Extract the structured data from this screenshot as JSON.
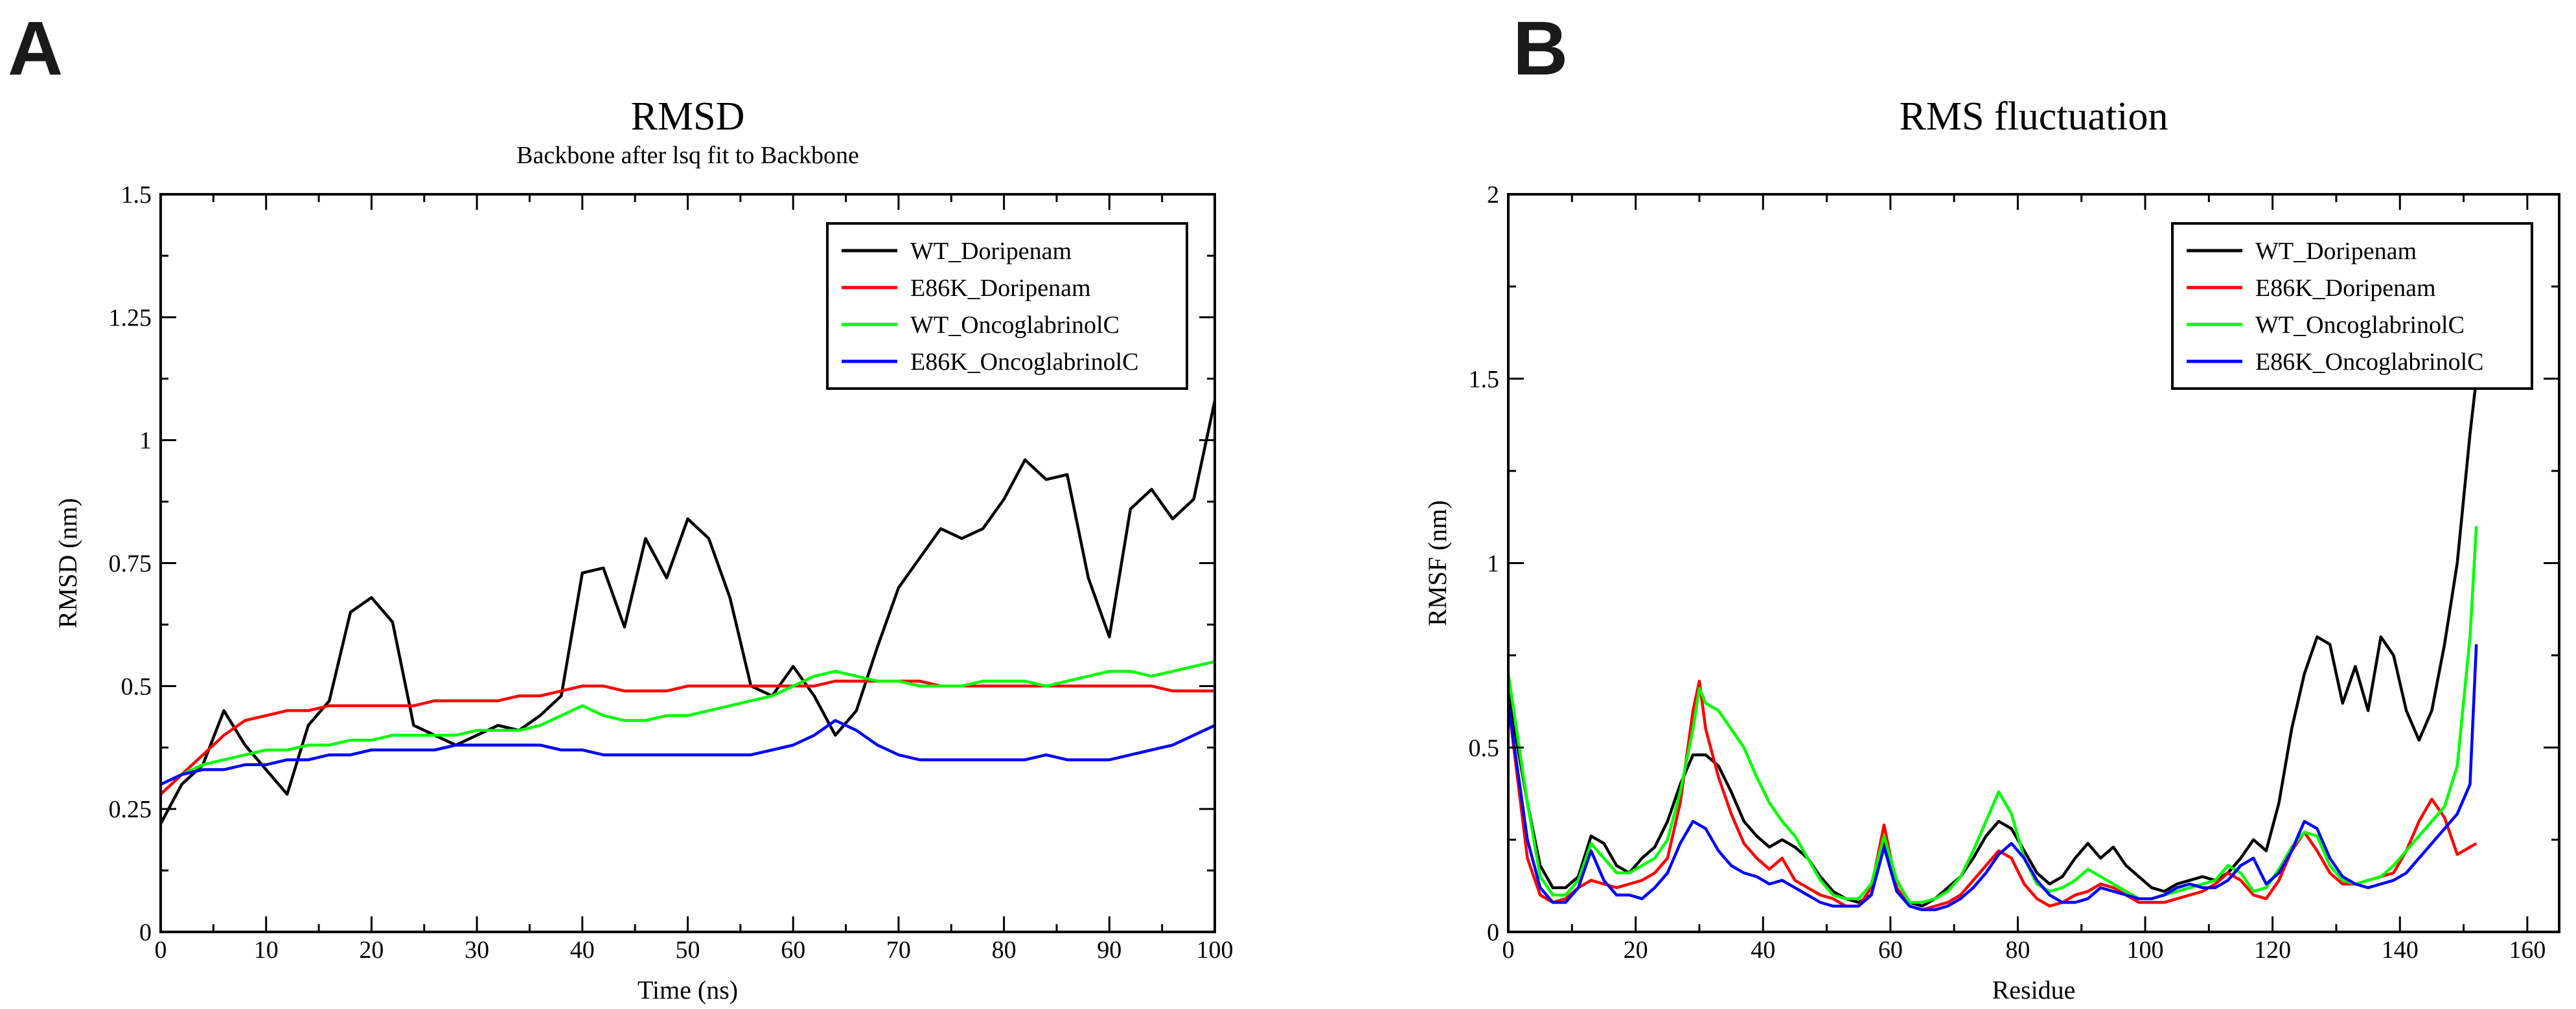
{
  "chart_data": [
    {
      "panel": "A",
      "type": "line",
      "title": "RMSD",
      "subtitle": "Backbone after lsq fit to Backbone",
      "xlabel": "Time (ns)",
      "ylabel": "RMSD (nm)",
      "xlim": [
        0,
        100
      ],
      "ylim": [
        0,
        1.5
      ],
      "xticks": [
        0,
        10,
        20,
        30,
        40,
        50,
        60,
        70,
        80,
        90,
        100
      ],
      "yticks": [
        0,
        0.25,
        0.5,
        0.75,
        1,
        1.25,
        1.5
      ],
      "ytick_labels": [
        "0",
        "0.25",
        "0.5",
        "0.75",
        "1",
        "1.25",
        "1.5"
      ],
      "legend_position": "top-right",
      "series": [
        {
          "name": "WT_Doripenam",
          "color": "#000000",
          "x": [
            0,
            2,
            4,
            6,
            8,
            10,
            12,
            14,
            16,
            18,
            20,
            22,
            24,
            26,
            28,
            30,
            32,
            34,
            36,
            38,
            40,
            42,
            44,
            46,
            48,
            50,
            52,
            54,
            56,
            58,
            60,
            62,
            64,
            66,
            68,
            70,
            72,
            74,
            76,
            78,
            80,
            82,
            84,
            86,
            88,
            90,
            92,
            94,
            96,
            98,
            100
          ],
          "y": [
            0.22,
            0.3,
            0.34,
            0.45,
            0.38,
            0.33,
            0.28,
            0.42,
            0.47,
            0.65,
            0.68,
            0.63,
            0.42,
            0.4,
            0.38,
            0.4,
            0.42,
            0.41,
            0.44,
            0.48,
            0.73,
            0.74,
            0.62,
            0.8,
            0.72,
            0.84,
            0.8,
            0.68,
            0.5,
            0.48,
            0.54,
            0.48,
            0.4,
            0.45,
            0.58,
            0.7,
            0.76,
            0.82,
            0.8,
            0.82,
            0.88,
            0.96,
            0.92,
            0.93,
            0.72,
            0.6,
            0.86,
            0.9,
            0.84,
            0.88,
            1.08
          ]
        },
        {
          "name": "E86K_Doripenam",
          "color": "#ff0000",
          "x": [
            0,
            2,
            4,
            6,
            8,
            10,
            12,
            14,
            16,
            18,
            20,
            22,
            24,
            26,
            28,
            30,
            32,
            34,
            36,
            38,
            40,
            42,
            44,
            46,
            48,
            50,
            52,
            54,
            56,
            58,
            60,
            62,
            64,
            66,
            68,
            70,
            72,
            74,
            76,
            78,
            80,
            82,
            84,
            86,
            88,
            90,
            92,
            94,
            96,
            98,
            100
          ],
          "y": [
            0.28,
            0.32,
            0.36,
            0.4,
            0.43,
            0.44,
            0.45,
            0.45,
            0.46,
            0.46,
            0.46,
            0.46,
            0.46,
            0.47,
            0.47,
            0.47,
            0.47,
            0.48,
            0.48,
            0.49,
            0.5,
            0.5,
            0.49,
            0.49,
            0.49,
            0.5,
            0.5,
            0.5,
            0.5,
            0.5,
            0.5,
            0.5,
            0.51,
            0.51,
            0.51,
            0.51,
            0.51,
            0.5,
            0.5,
            0.5,
            0.5,
            0.5,
            0.5,
            0.5,
            0.5,
            0.5,
            0.5,
            0.5,
            0.49,
            0.49,
            0.49
          ]
        },
        {
          "name": "WT_OncoglabrinolC",
          "color": "#00ff00",
          "x": [
            0,
            2,
            4,
            6,
            8,
            10,
            12,
            14,
            16,
            18,
            20,
            22,
            24,
            26,
            28,
            30,
            32,
            34,
            36,
            38,
            40,
            42,
            44,
            46,
            48,
            50,
            52,
            54,
            56,
            58,
            60,
            62,
            64,
            66,
            68,
            70,
            72,
            74,
            76,
            78,
            80,
            82,
            84,
            86,
            88,
            90,
            92,
            94,
            96,
            98,
            100
          ],
          "y": [
            0.3,
            0.32,
            0.34,
            0.35,
            0.36,
            0.37,
            0.37,
            0.38,
            0.38,
            0.39,
            0.39,
            0.4,
            0.4,
            0.4,
            0.4,
            0.41,
            0.41,
            0.41,
            0.42,
            0.44,
            0.46,
            0.44,
            0.43,
            0.43,
            0.44,
            0.44,
            0.45,
            0.46,
            0.47,
            0.48,
            0.5,
            0.52,
            0.53,
            0.52,
            0.51,
            0.51,
            0.5,
            0.5,
            0.5,
            0.51,
            0.51,
            0.51,
            0.5,
            0.51,
            0.52,
            0.53,
            0.53,
            0.52,
            0.53,
            0.54,
            0.55
          ]
        },
        {
          "name": "E86K_OncoglabrinolC",
          "color": "#0000ff",
          "x": [
            0,
            2,
            4,
            6,
            8,
            10,
            12,
            14,
            16,
            18,
            20,
            22,
            24,
            26,
            28,
            30,
            32,
            34,
            36,
            38,
            40,
            42,
            44,
            46,
            48,
            50,
            52,
            54,
            56,
            58,
            60,
            62,
            64,
            66,
            68,
            70,
            72,
            74,
            76,
            78,
            80,
            82,
            84,
            86,
            88,
            90,
            92,
            94,
            96,
            98,
            100
          ],
          "y": [
            0.3,
            0.32,
            0.33,
            0.33,
            0.34,
            0.34,
            0.35,
            0.35,
            0.36,
            0.36,
            0.37,
            0.37,
            0.37,
            0.37,
            0.38,
            0.38,
            0.38,
            0.38,
            0.38,
            0.37,
            0.37,
            0.36,
            0.36,
            0.36,
            0.36,
            0.36,
            0.36,
            0.36,
            0.36,
            0.37,
            0.38,
            0.4,
            0.43,
            0.41,
            0.38,
            0.36,
            0.35,
            0.35,
            0.35,
            0.35,
            0.35,
            0.35,
            0.36,
            0.35,
            0.35,
            0.35,
            0.36,
            0.37,
            0.38,
            0.4,
            0.42
          ]
        }
      ]
    },
    {
      "panel": "B",
      "type": "line",
      "title": "RMS fluctuation",
      "xlabel": "Residue",
      "ylabel": "RMSF (nm)",
      "xlim": [
        0,
        165
      ],
      "ylim": [
        0,
        2
      ],
      "xticks": [
        0,
        20,
        40,
        60,
        80,
        100,
        120,
        140,
        160
      ],
      "yticks": [
        0,
        0.5,
        1,
        1.5,
        2
      ],
      "ytick_labels": [
        "0",
        "0.5",
        "1",
        "1.5",
        "2"
      ],
      "legend_position": "top-right",
      "series": [
        {
          "name": "WT_Doripenam",
          "color": "#000000",
          "x": [
            0,
            3,
            5,
            7,
            9,
            11,
            13,
            15,
            17,
            19,
            21,
            23,
            25,
            27,
            29,
            31,
            33,
            35,
            37,
            39,
            41,
            43,
            45,
            47,
            49,
            51,
            53,
            55,
            57,
            59,
            61,
            63,
            65,
            67,
            69,
            71,
            73,
            75,
            77,
            79,
            81,
            83,
            85,
            87,
            89,
            91,
            93,
            95,
            97,
            99,
            101,
            103,
            105,
            107,
            109,
            111,
            113,
            115,
            117,
            119,
            121,
            123,
            125,
            127,
            129,
            131,
            133,
            135,
            137,
            139,
            141,
            143,
            145,
            147,
            149,
            151,
            152
          ],
          "y": [
            0.65,
            0.35,
            0.18,
            0.12,
            0.12,
            0.15,
            0.26,
            0.24,
            0.18,
            0.16,
            0.2,
            0.23,
            0.3,
            0.4,
            0.48,
            0.48,
            0.45,
            0.38,
            0.3,
            0.26,
            0.23,
            0.25,
            0.23,
            0.2,
            0.15,
            0.11,
            0.09,
            0.08,
            0.1,
            0.25,
            0.14,
            0.08,
            0.07,
            0.09,
            0.12,
            0.15,
            0.2,
            0.26,
            0.3,
            0.28,
            0.22,
            0.16,
            0.13,
            0.15,
            0.2,
            0.24,
            0.2,
            0.23,
            0.18,
            0.15,
            0.12,
            0.11,
            0.13,
            0.14,
            0.15,
            0.14,
            0.16,
            0.2,
            0.25,
            0.22,
            0.35,
            0.55,
            0.7,
            0.8,
            0.78,
            0.62,
            0.72,
            0.6,
            0.8,
            0.75,
            0.6,
            0.52,
            0.6,
            0.78,
            1.0,
            1.35,
            1.5
          ]
        },
        {
          "name": "E86K_Doripenam",
          "color": "#ff0000",
          "x": [
            0,
            3,
            5,
            7,
            9,
            11,
            13,
            15,
            17,
            19,
            21,
            23,
            25,
            27,
            29,
            30,
            31,
            33,
            35,
            37,
            39,
            41,
            43,
            45,
            47,
            49,
            51,
            53,
            55,
            57,
            59,
            61,
            63,
            65,
            67,
            69,
            71,
            73,
            75,
            77,
            79,
            81,
            83,
            85,
            87,
            89,
            91,
            93,
            95,
            97,
            99,
            101,
            103,
            105,
            107,
            109,
            111,
            113,
            115,
            117,
            119,
            121,
            123,
            125,
            127,
            129,
            131,
            133,
            135,
            137,
            139,
            141,
            143,
            145,
            147,
            149,
            152
          ],
          "y": [
            0.62,
            0.2,
            0.1,
            0.08,
            0.09,
            0.12,
            0.14,
            0.13,
            0.12,
            0.13,
            0.14,
            0.16,
            0.2,
            0.35,
            0.6,
            0.68,
            0.55,
            0.42,
            0.32,
            0.24,
            0.2,
            0.17,
            0.2,
            0.14,
            0.12,
            0.1,
            0.09,
            0.07,
            0.07,
            0.12,
            0.29,
            0.12,
            0.07,
            0.06,
            0.07,
            0.08,
            0.1,
            0.14,
            0.18,
            0.22,
            0.2,
            0.13,
            0.09,
            0.07,
            0.08,
            0.1,
            0.11,
            0.13,
            0.12,
            0.1,
            0.08,
            0.08,
            0.08,
            0.09,
            0.1,
            0.11,
            0.13,
            0.16,
            0.14,
            0.1,
            0.09,
            0.14,
            0.22,
            0.27,
            0.22,
            0.16,
            0.13,
            0.13,
            0.14,
            0.15,
            0.16,
            0.22,
            0.3,
            0.36,
            0.31,
            0.21,
            0.24
          ]
        },
        {
          "name": "WT_OncoglabrinolC",
          "color": "#00ff00",
          "x": [
            0,
            3,
            5,
            7,
            9,
            11,
            13,
            15,
            17,
            19,
            21,
            23,
            25,
            27,
            29,
            30,
            31,
            33,
            35,
            37,
            39,
            41,
            43,
            45,
            47,
            49,
            51,
            53,
            55,
            57,
            59,
            61,
            63,
            65,
            67,
            69,
            71,
            73,
            75,
            77,
            79,
            81,
            83,
            85,
            87,
            89,
            91,
            93,
            95,
            97,
            99,
            101,
            103,
            105,
            107,
            109,
            111,
            113,
            115,
            117,
            119,
            121,
            123,
            125,
            127,
            129,
            131,
            133,
            135,
            137,
            139,
            141,
            143,
            145,
            147,
            149,
            151,
            152
          ],
          "y": [
            0.7,
            0.35,
            0.15,
            0.1,
            0.1,
            0.14,
            0.24,
            0.2,
            0.16,
            0.16,
            0.18,
            0.2,
            0.25,
            0.38,
            0.55,
            0.66,
            0.62,
            0.6,
            0.55,
            0.5,
            0.42,
            0.35,
            0.3,
            0.26,
            0.2,
            0.14,
            0.1,
            0.09,
            0.09,
            0.13,
            0.26,
            0.14,
            0.08,
            0.08,
            0.09,
            0.11,
            0.15,
            0.22,
            0.3,
            0.38,
            0.32,
            0.2,
            0.13,
            0.11,
            0.12,
            0.14,
            0.17,
            0.15,
            0.13,
            0.11,
            0.09,
            0.09,
            0.1,
            0.11,
            0.12,
            0.13,
            0.14,
            0.18,
            0.16,
            0.11,
            0.12,
            0.17,
            0.23,
            0.27,
            0.26,
            0.18,
            0.14,
            0.13,
            0.14,
            0.15,
            0.18,
            0.22,
            0.26,
            0.3,
            0.34,
            0.45,
            0.8,
            1.1
          ]
        },
        {
          "name": "E86K_OncoglabrinolC",
          "color": "#0000ff",
          "x": [
            0,
            3,
            5,
            7,
            9,
            11,
            13,
            15,
            17,
            19,
            21,
            23,
            25,
            27,
            29,
            31,
            33,
            35,
            37,
            39,
            41,
            43,
            45,
            47,
            49,
            51,
            53,
            55,
            57,
            59,
            61,
            63,
            65,
            67,
            69,
            71,
            73,
            75,
            77,
            79,
            81,
            83,
            85,
            87,
            89,
            91,
            93,
            95,
            97,
            99,
            101,
            103,
            105,
            107,
            109,
            111,
            113,
            115,
            117,
            119,
            121,
            123,
            125,
            127,
            129,
            131,
            133,
            135,
            137,
            139,
            141,
            143,
            145,
            147,
            149,
            151,
            152
          ],
          "y": [
            0.62,
            0.25,
            0.12,
            0.08,
            0.08,
            0.12,
            0.22,
            0.14,
            0.1,
            0.1,
            0.09,
            0.12,
            0.16,
            0.24,
            0.3,
            0.28,
            0.22,
            0.18,
            0.16,
            0.15,
            0.13,
            0.14,
            0.12,
            0.1,
            0.08,
            0.07,
            0.07,
            0.07,
            0.1,
            0.23,
            0.11,
            0.07,
            0.06,
            0.06,
            0.07,
            0.09,
            0.12,
            0.16,
            0.21,
            0.24,
            0.2,
            0.14,
            0.1,
            0.08,
            0.08,
            0.09,
            0.12,
            0.11,
            0.1,
            0.09,
            0.09,
            0.1,
            0.12,
            0.13,
            0.12,
            0.12,
            0.14,
            0.18,
            0.2,
            0.13,
            0.16,
            0.22,
            0.3,
            0.28,
            0.2,
            0.15,
            0.13,
            0.12,
            0.13,
            0.14,
            0.16,
            0.2,
            0.24,
            0.28,
            0.32,
            0.4,
            0.78
          ]
        }
      ]
    }
  ]
}
